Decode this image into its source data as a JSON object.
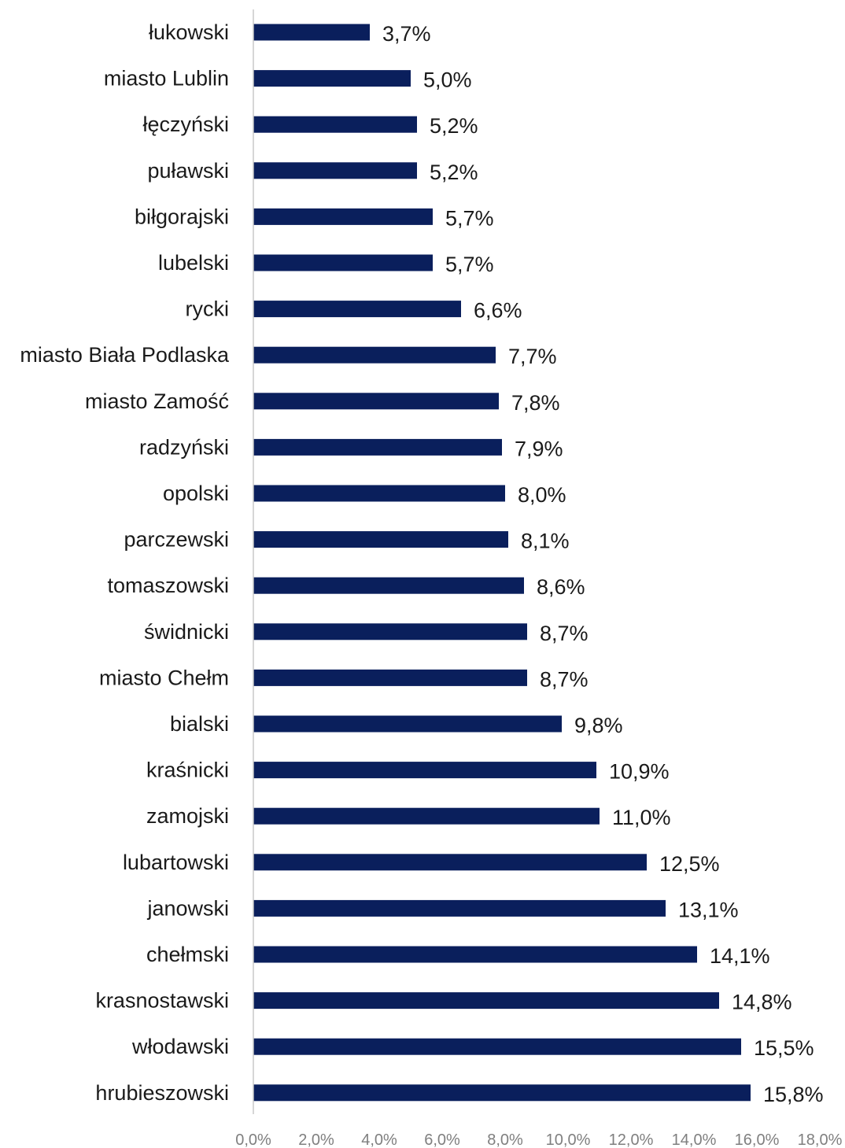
{
  "chart_data": {
    "type": "bar",
    "orientation": "horizontal",
    "categories": [
      "łukowski",
      "miasto Lublin",
      "łęczyński",
      "puławski",
      "biłgorajski",
      "lubelski",
      "rycki",
      "miasto Biała Podlaska",
      "miasto Zamość",
      "radzyński",
      "opolski",
      "parczewski",
      "tomaszowski",
      "świdnicki",
      "miasto Chełm",
      "bialski",
      "kraśnicki",
      "zamojski",
      "lubartowski",
      "janowski",
      "chełmski",
      "krasnostawski",
      "włodawski",
      "hrubieszowski"
    ],
    "values": [
      3.7,
      5.0,
      5.2,
      5.2,
      5.7,
      5.7,
      6.6,
      7.7,
      7.8,
      7.9,
      8.0,
      8.1,
      8.6,
      8.7,
      8.7,
      9.8,
      10.9,
      11.0,
      12.5,
      13.1,
      14.1,
      14.8,
      15.5,
      15.8
    ],
    "value_labels": [
      "3,7%",
      "5,0%",
      "5,2%",
      "5,2%",
      "5,7%",
      "5,7%",
      "6,6%",
      "7,7%",
      "7,8%",
      "7,9%",
      "8,0%",
      "8,1%",
      "8,6%",
      "8,7%",
      "8,7%",
      "9,8%",
      "10,9%",
      "11,0%",
      "12,5%",
      "13,1%",
      "14,1%",
      "14,8%",
      "15,5%",
      "15,8%"
    ],
    "xlim": [
      0,
      18
    ],
    "x_ticks": [
      0,
      2,
      4,
      6,
      8,
      10,
      12,
      14,
      16,
      18
    ],
    "x_tick_labels": [
      "0,0%",
      "2,0%",
      "4,0%",
      "6,0%",
      "8,0%",
      "10,0%",
      "12,0%",
      "14,0%",
      "16,0%",
      "18,0%"
    ],
    "title": "",
    "xlabel": "",
    "ylabel": "",
    "grid": false,
    "legend": "none",
    "colors": {
      "bar": "#0a1f5c",
      "axis": "#c8c8c8",
      "tick_text": "#7f7f7f",
      "label_text": "#1a1a1a"
    }
  }
}
